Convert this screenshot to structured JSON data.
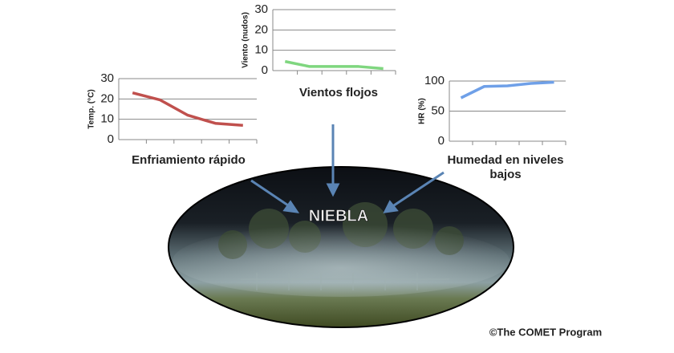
{
  "chart_data": [
    {
      "type": "line",
      "title": "Enfriamiento rápido",
      "ylabel": "Temp. (°C)",
      "categories": [
        null,
        null,
        null,
        null,
        null
      ],
      "values": [
        23,
        19.5,
        12,
        8,
        7
      ],
      "color": "#c0504d",
      "ylim": [
        0,
        30
      ],
      "yticks": [
        0,
        10,
        20,
        30
      ],
      "grid": true
    },
    {
      "type": "line",
      "title": "Vientos flojos",
      "ylabel": "Viento (nudos)",
      "categories": [
        null,
        null,
        null,
        null,
        null
      ],
      "values": [
        4.5,
        2,
        2,
        2,
        1
      ],
      "color": "#7fd67f",
      "ylim": [
        0,
        30
      ],
      "yticks": [
        0,
        10,
        20,
        30
      ],
      "grid": true
    },
    {
      "type": "line",
      "title": "Humedad en niveles bajos",
      "ylabel": "HR (%)",
      "categories": [
        null,
        null,
        null,
        null,
        null
      ],
      "values": [
        72,
        91,
        92,
        96,
        98
      ],
      "color": "#6fa0e8",
      "ylim": [
        0,
        100
      ],
      "yticks": [
        0,
        50,
        100
      ],
      "grid": true
    }
  ],
  "center_label": "NIEBLA",
  "credit": "©The COMET Program"
}
